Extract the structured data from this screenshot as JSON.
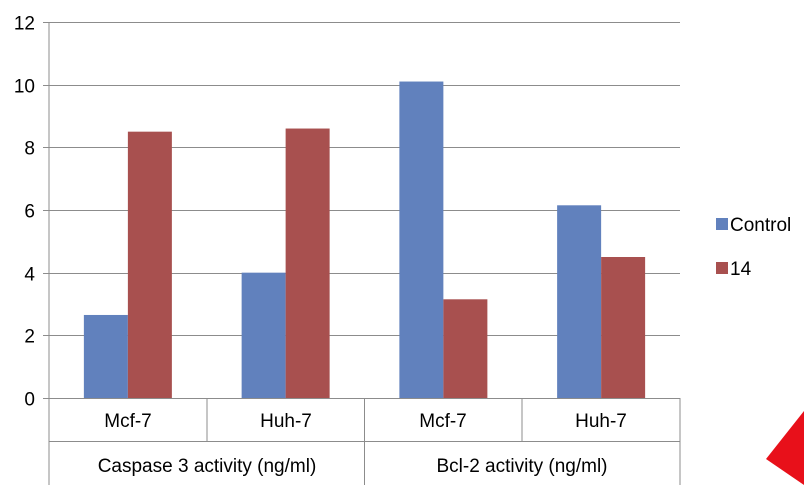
{
  "chart_data": {
    "type": "bar",
    "categories": [
      "Mcf-7",
      "Huh-7",
      "Mcf-7",
      "Huh-7"
    ],
    "groups": [
      {
        "label": "Caspase 3 activity (ng/ml)",
        "categories": [
          "Mcf-7",
          "Huh-7"
        ]
      },
      {
        "label": "Bcl-2 activity (ng/ml)",
        "categories": [
          "Mcf-7",
          "Huh-7"
        ]
      }
    ],
    "series": [
      {
        "name": "Control",
        "color": "#6181BD",
        "values": [
          2.65,
          4.0,
          10.1,
          6.15
        ]
      },
      {
        "name": "14",
        "color": "#A8504F",
        "values": [
          8.5,
          8.6,
          3.15,
          4.5
        ]
      }
    ],
    "ylim": [
      0,
      12
    ],
    "yticks": [
      "0",
      "2",
      "4",
      "6",
      "8",
      "10",
      "12"
    ],
    "grid": true,
    "legend": "right",
    "title": "",
    "xlabel": "",
    "ylabel": ""
  },
  "decor": {
    "corner_mark": "red-arrow-icon",
    "corner_color": "#E8101A"
  }
}
